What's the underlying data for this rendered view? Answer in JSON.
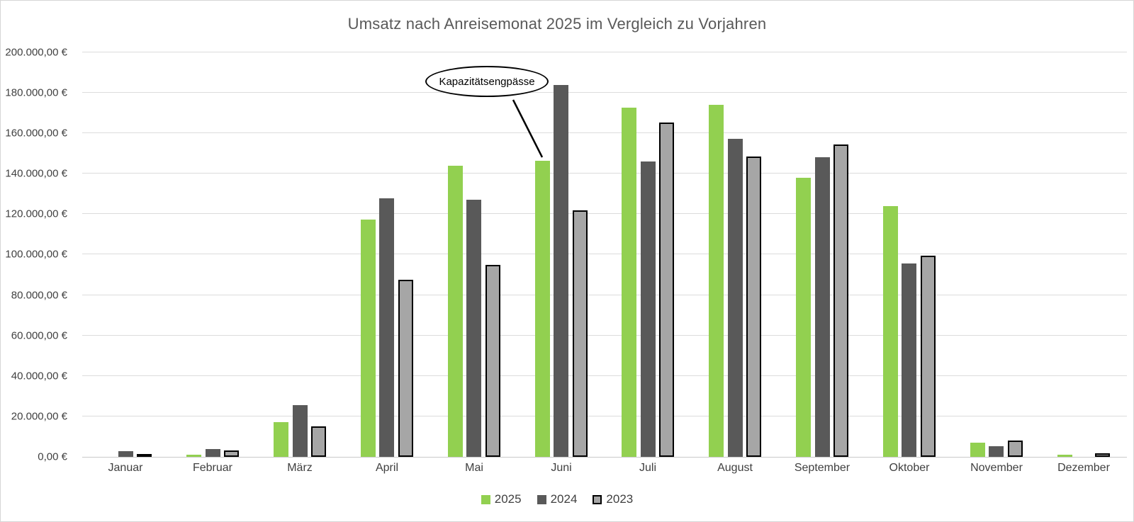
{
  "title": "Umsatz nach Anreisemonat 2025 im Vergleich zu Vorjahren",
  "annotation": {
    "text": "Kapazitätsengpässe",
    "points_to": "Juni 2025 bar"
  },
  "colors": {
    "series_2025": "#92D050",
    "series_2024": "#595959",
    "series_2023": "#A6A6A6",
    "series_2023_border": "#000000",
    "gridline": "#DCDCDC",
    "axis_text": "#404040",
    "title_text": "#595959"
  },
  "legend": {
    "entries": [
      "2025",
      "2024",
      "2023"
    ]
  },
  "y_axis": {
    "tick_labels_bottom_up": [
      "0,00 €",
      "20.000,00 €",
      "40.000,00 €",
      "60.000,00 €",
      "80.000,00 €",
      "100.000,00 €",
      "120.000,00 €",
      "140.000,00 €",
      "160.000,00 €",
      "180.000,00 €",
      "200.000,00 €"
    ]
  },
  "chart_data": {
    "type": "bar",
    "title": "Umsatz nach Anreisemonat 2025 im Vergleich zu Vorjahren",
    "xlabel": "",
    "ylabel": "",
    "ylim": [
      0,
      200000
    ],
    "grid": true,
    "legend_position": "bottom",
    "currency": "EUR",
    "categories": [
      "Januar",
      "Februar",
      "März",
      "April",
      "Mai",
      "Juni",
      "Juli",
      "August",
      "September",
      "Oktober",
      "November",
      "Dezember"
    ],
    "series": [
      {
        "name": "2025",
        "color": "#92D050",
        "values": [
          0,
          1200,
          17000,
          117500,
          144000,
          146500,
          172800,
          174000,
          138000,
          124000,
          7000,
          1200
        ]
      },
      {
        "name": "2024",
        "color": "#595959",
        "values": [
          2800,
          3800,
          25500,
          128000,
          127000,
          184000,
          146000,
          157400,
          148200,
          95500,
          5300,
          0
        ]
      },
      {
        "name": "2023",
        "color": "#A6A6A6",
        "values": [
          900,
          3200,
          15000,
          87500,
          95000,
          122000,
          165200,
          148400,
          154500,
          99400,
          8000,
          1800
        ]
      }
    ],
    "annotations": [
      {
        "text": "Kapazitätsengpässe",
        "shape": "ellipse",
        "target_category": "Juni",
        "target_series": "2025"
      }
    ]
  }
}
